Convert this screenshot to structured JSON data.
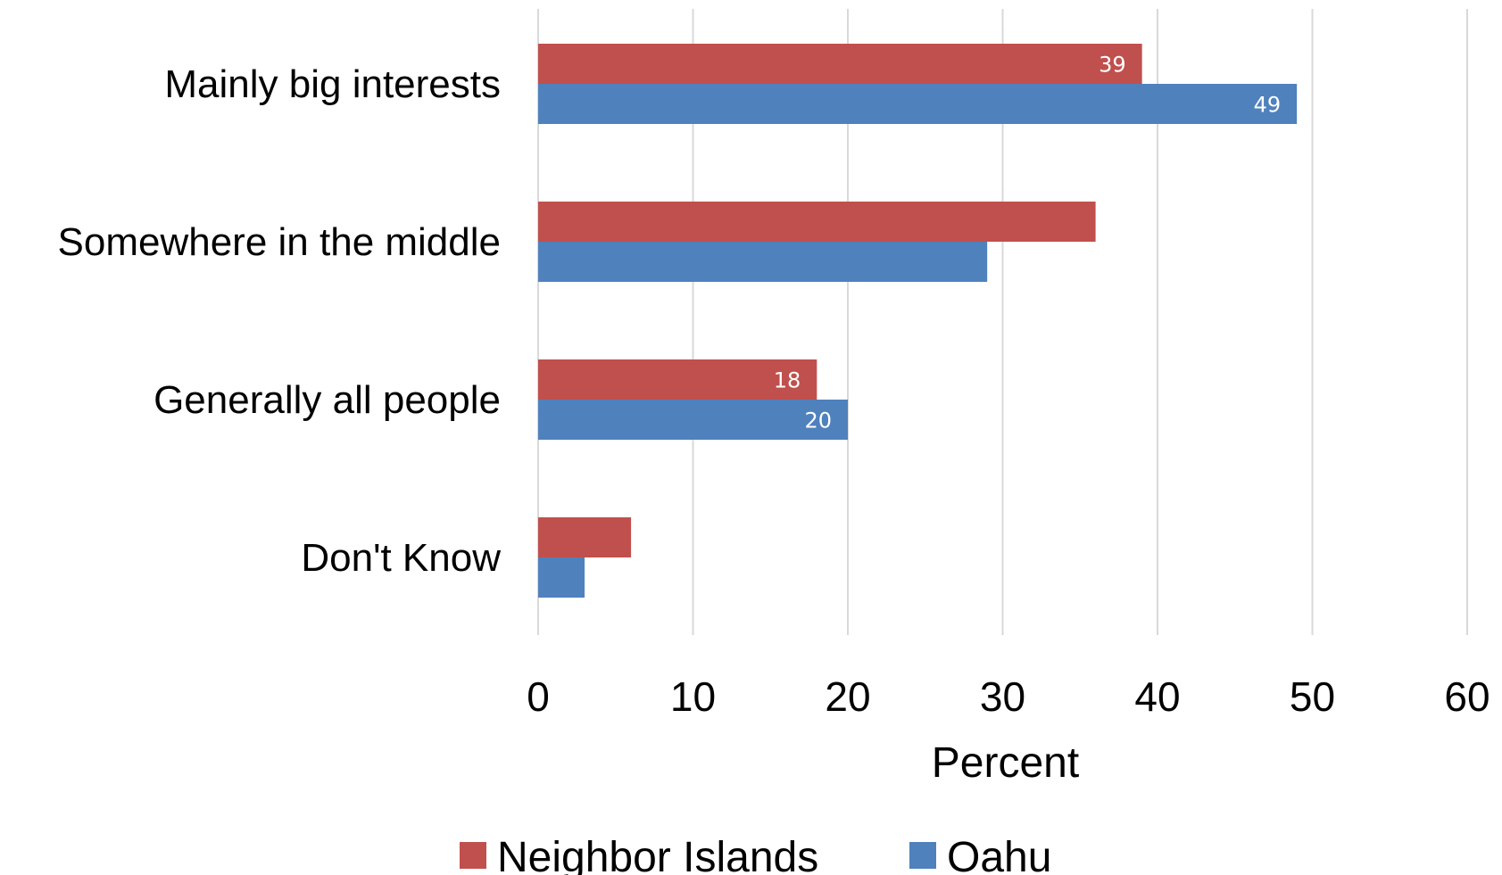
{
  "chart_data": {
    "type": "bar",
    "orientation": "horizontal",
    "categories": [
      "Mainly big interests",
      "Somewhere in the middle",
      "Generally all people",
      "Don't Know"
    ],
    "series": [
      {
        "name": "Neighbor Islands",
        "color": "#c0504d",
        "values": [
          39,
          36,
          18,
          6
        ],
        "data_labels": [
          "39",
          null,
          "18",
          null
        ]
      },
      {
        "name": "Oahu",
        "color": "#4f81bd",
        "values": [
          49,
          29,
          20,
          3
        ],
        "data_labels": [
          "49",
          null,
          "20",
          null
        ]
      }
    ],
    "xlabel": "Percent",
    "ylabel": "",
    "xlim": [
      0,
      60
    ],
    "xticks": [
      "0",
      "10",
      "20",
      "30",
      "40",
      "50",
      "60"
    ],
    "grid": "vertical",
    "legend": "bottom"
  }
}
